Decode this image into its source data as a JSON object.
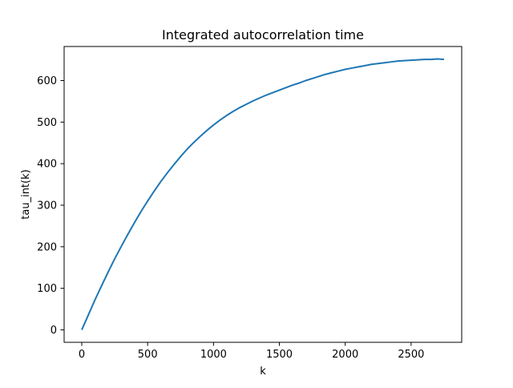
{
  "chart_data": {
    "type": "line",
    "title": "Integrated autocorrelation time",
    "xlabel": "k",
    "ylabel": "tau_int(k)",
    "xlim": [
      -134,
      2884
    ],
    "ylim": [
      -30,
      682
    ],
    "grid": false,
    "x_ticks": [
      0,
      500,
      1000,
      1500,
      2000,
      2500
    ],
    "y_ticks": [
      0,
      100,
      200,
      300,
      400,
      500,
      600
    ],
    "series": [
      {
        "color": "#1f77b4",
        "x": [
          0,
          50,
          100,
          150,
          200,
          250,
          300,
          350,
          400,
          450,
          500,
          550,
          600,
          650,
          700,
          750,
          800,
          850,
          900,
          950,
          1000,
          1050,
          1100,
          1150,
          1200,
          1250,
          1300,
          1350,
          1400,
          1450,
          1500,
          1550,
          1600,
          1650,
          1700,
          1750,
          1800,
          1850,
          1900,
          1950,
          2000,
          2050,
          2100,
          2150,
          2200,
          2250,
          2300,
          2350,
          2400,
          2450,
          2500,
          2550,
          2600,
          2650,
          2700,
          2750
        ],
        "y": [
          0,
          36,
          72,
          106,
          139,
          171,
          201,
          230,
          258,
          285,
          310,
          334,
          357,
          378,
          398,
          417,
          435,
          451,
          466,
          480,
          493,
          505,
          516,
          526,
          535,
          543,
          551,
          558,
          565,
          571,
          577,
          583,
          589,
          594,
          600,
          605,
          610,
          615,
          619,
          623,
          627,
          630,
          633,
          636,
          639,
          641,
          643,
          645,
          647,
          648,
          649,
          650,
          651,
          651,
          652,
          651
        ]
      }
    ]
  }
}
